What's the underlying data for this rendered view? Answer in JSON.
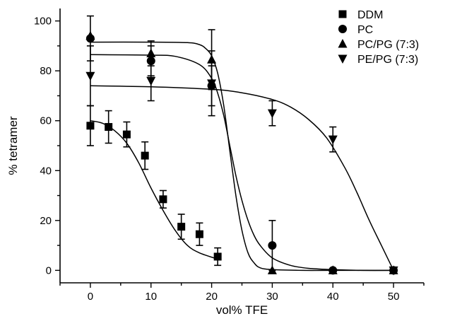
{
  "chart_data": {
    "type": "scatter",
    "title": "",
    "xlabel": "vol% TFE",
    "ylabel": "% tetramer",
    "xlim": [
      -5,
      55
    ],
    "ylim": [
      -5,
      105
    ],
    "xticks": [
      0,
      10,
      20,
      30,
      40,
      50
    ],
    "yticks": [
      0,
      20,
      40,
      60,
      80,
      100
    ],
    "grid": false,
    "legend_position": "top-right",
    "series": [
      {
        "name": "DDM",
        "marker": "square",
        "points": [
          {
            "x": 0,
            "y": 58,
            "err": 8
          },
          {
            "x": 3,
            "y": 57.5,
            "err": 6.5
          },
          {
            "x": 6,
            "y": 54.5,
            "err": 5
          },
          {
            "x": 9,
            "y": 46,
            "err": 5.5
          },
          {
            "x": 12,
            "y": 28.5,
            "err": 3.5
          },
          {
            "x": 15,
            "y": 17.5,
            "err": 5
          },
          {
            "x": 18,
            "y": 14.5,
            "err": 4.5
          },
          {
            "x": 21,
            "y": 5.5,
            "err": 3.5
          }
        ],
        "fit": {
          "x": [
            0,
            2,
            4,
            6,
            8,
            10,
            12,
            14,
            16,
            18,
            21
          ],
          "y": [
            60,
            59,
            56,
            51,
            43,
            33,
            24,
            16,
            10,
            7,
            4.5
          ]
        }
      },
      {
        "name": "PC",
        "marker": "circle",
        "points": [
          {
            "x": 0,
            "y": 93,
            "err": 9
          },
          {
            "x": 10,
            "y": 84,
            "err": 6
          },
          {
            "x": 20,
            "y": 74,
            "err": 8
          },
          {
            "x": 30,
            "y": 10,
            "err": 10
          },
          {
            "x": 40,
            "y": 0,
            "err": 0
          },
          {
            "x": 50,
            "y": 0,
            "err": 0
          }
        ],
        "fit": {
          "x": [
            0,
            10,
            14,
            18,
            20,
            21,
            22,
            23,
            24,
            25,
            26,
            27,
            28,
            30,
            33,
            36,
            40,
            45,
            50
          ],
          "y": [
            86.5,
            86.3,
            85.8,
            82.5,
            77,
            71,
            62,
            50,
            38,
            28,
            20,
            14,
            10,
            5,
            2,
            0.8,
            0.3,
            0,
            0
          ]
        }
      },
      {
        "name": "PC/PG (7:3)",
        "marker": "triangle-up",
        "points": [
          {
            "x": 0,
            "y": 94,
            "err": 0
          },
          {
            "x": 10,
            "y": 87,
            "err": 5
          },
          {
            "x": 20,
            "y": 84.5,
            "err": 12
          },
          {
            "x": 30,
            "y": 0,
            "err": 0
          },
          {
            "x": 40,
            "y": 0,
            "err": 0
          },
          {
            "x": 50,
            "y": 0,
            "err": 0
          }
        ],
        "fit": {
          "x": [
            0,
            10,
            16,
            18,
            19,
            20,
            21,
            22,
            23,
            24,
            25,
            26,
            27,
            28,
            30,
            35,
            40,
            50
          ],
          "y": [
            91.5,
            91.5,
            91.3,
            90.5,
            89,
            86,
            79,
            66,
            48,
            30,
            16,
            7,
            3,
            1,
            0.3,
            0,
            0,
            0
          ]
        }
      },
      {
        "name": "PE/PG (7:3)",
        "marker": "triangle-down",
        "points": [
          {
            "x": 0,
            "y": 78,
            "err": 12
          },
          {
            "x": 10,
            "y": 76,
            "err": 8
          },
          {
            "x": 20,
            "y": 75,
            "err": 13
          },
          {
            "x": 30,
            "y": 63,
            "err": 5
          },
          {
            "x": 40,
            "y": 52.5,
            "err": 5
          },
          {
            "x": 50,
            "y": 0,
            "err": 0
          }
        ],
        "fit": {
          "x": [
            0,
            10,
            20,
            25,
            30,
            33,
            36,
            39,
            42,
            44,
            46,
            48,
            50
          ],
          "y": [
            74,
            73.6,
            72.6,
            71.2,
            68.5,
            65.5,
            60.5,
            53,
            41,
            31,
            20,
            10,
            0
          ]
        }
      }
    ]
  }
}
